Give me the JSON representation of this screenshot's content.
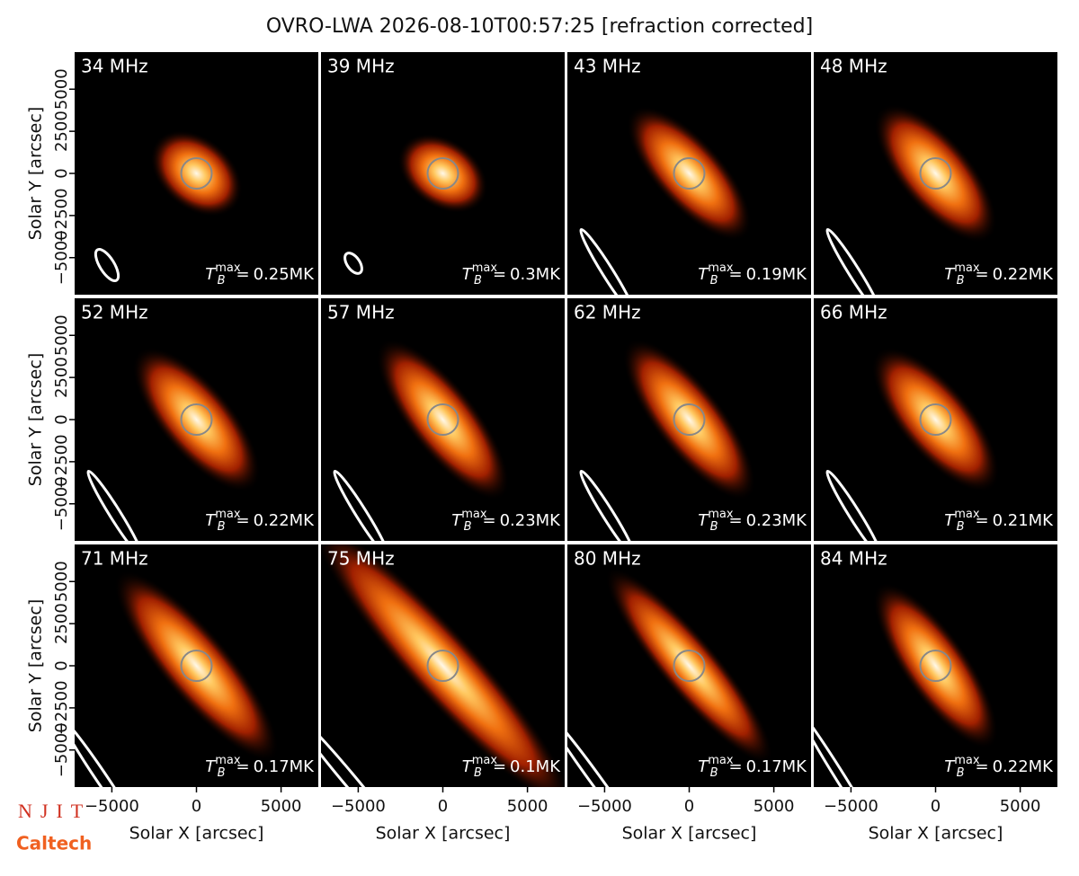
{
  "title": "OVRO-LWA 2026-08-10T00:57:25 [refraction corrected]",
  "xlabel": "Solar X [arcsec]",
  "ylabel": "Solar Y [arcsec]",
  "xlim": [
    -7200,
    7200
  ],
  "ylim": [
    -7200,
    7200
  ],
  "xticks": [
    {
      "value": -5000,
      "label": "−5000"
    },
    0,
    5000
  ],
  "yticks": [
    {
      "value": -5000,
      "label": "−5000"
    },
    {
      "value": -2500,
      "label": "−2500"
    },
    0,
    2500,
    5000
  ],
  "tb_symbol": {
    "base": "T",
    "sub": "B",
    "sup": "max",
    "eq": "="
  },
  "panels": [
    {
      "freq": "34 MHz",
      "tb": "0.25MK"
    },
    {
      "freq": "39 MHz",
      "tb": "0.3MK"
    },
    {
      "freq": "43 MHz",
      "tb": "0.19MK"
    },
    {
      "freq": "48 MHz",
      "tb": "0.22MK"
    },
    {
      "freq": "52 MHz",
      "tb": "0.22MK"
    },
    {
      "freq": "57 MHz",
      "tb": "0.23MK"
    },
    {
      "freq": "62 MHz",
      "tb": "0.23MK"
    },
    {
      "freq": "66 MHz",
      "tb": "0.21MK"
    },
    {
      "freq": "71 MHz",
      "tb": "0.17MK"
    },
    {
      "freq": "75 MHz",
      "tb": "0.1MK"
    },
    {
      "freq": "80 MHz",
      "tb": "0.17MK"
    },
    {
      "freq": "84 MHz",
      "tb": "0.22MK"
    }
  ],
  "logos": {
    "top": "NJIT",
    "bottom": "Caltech"
  }
}
